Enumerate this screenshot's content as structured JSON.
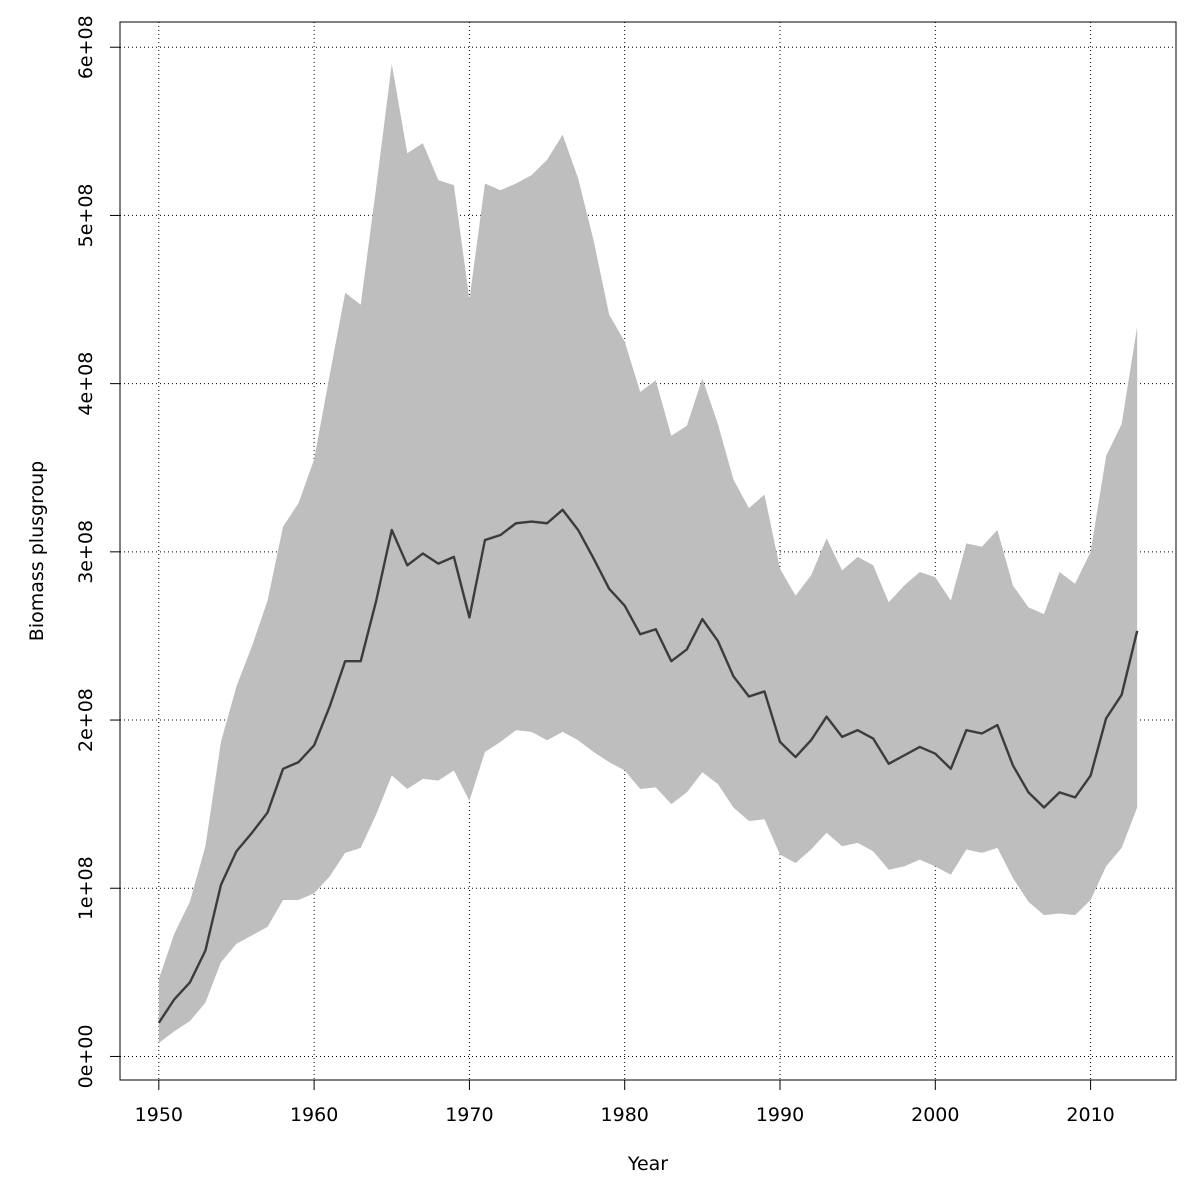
{
  "chart_data": {
    "type": "area",
    "title": "",
    "xlabel": "Year",
    "ylabel": "Biomass plusgroup",
    "xlim": [
      1947.5,
      2015.5
    ],
    "ylim": [
      -14000000,
      615000000
    ],
    "x_ticks": [
      1950,
      1960,
      1970,
      1980,
      1990,
      2000,
      2010
    ],
    "x_tick_labels": [
      "1950",
      "1960",
      "1970",
      "1980",
      "1990",
      "2000",
      "2010"
    ],
    "y_ticks": [
      0,
      100000000,
      200000000,
      300000000,
      400000000,
      500000000,
      600000000
    ],
    "y_tick_labels": [
      "0e+00",
      "1e+08",
      "2e+08",
      "3e+08",
      "4e+08",
      "5e+08",
      "6e+08"
    ],
    "grid": true,
    "legend": "none",
    "colors": {
      "band": "#bebebe",
      "line": "#3c3c3c",
      "grid": "#000000",
      "frame": "#000000"
    },
    "x": [
      1950,
      1951,
      1952,
      1953,
      1954,
      1955,
      1956,
      1957,
      1958,
      1959,
      1960,
      1961,
      1962,
      1963,
      1964,
      1965,
      1966,
      1967,
      1968,
      1969,
      1970,
      1971,
      1972,
      1973,
      1974,
      1975,
      1976,
      1977,
      1978,
      1979,
      1980,
      1981,
      1982,
      1983,
      1984,
      1985,
      1986,
      1987,
      1988,
      1989,
      1990,
      1991,
      1992,
      1993,
      1994,
      1995,
      1996,
      1997,
      1998,
      1999,
      2000,
      2001,
      2002,
      2003,
      2004,
      2005,
      2006,
      2007,
      2008,
      2009,
      2010,
      2011,
      2012,
      2013
    ],
    "series": [
      {
        "role": "upper",
        "values": [
          46,
          73,
          92,
          125,
          187,
          220,
          244,
          271,
          315,
          329,
          355,
          405,
          454,
          447,
          517,
          590,
          537,
          543,
          521,
          518,
          450,
          519,
          515,
          519,
          524,
          533,
          548,
          522,
          485,
          441,
          425,
          395,
          402,
          369,
          375,
          403,
          376,
          343,
          326,
          334,
          290,
          274,
          286,
          308,
          289,
          297,
          292,
          270,
          280,
          288,
          285,
          271,
          305,
          303,
          313,
          280,
          267,
          263,
          288,
          281,
          300,
          357,
          376,
          434
        ],
        "unit_multiplier": 1000000
      },
      {
        "role": "median",
        "values": [
          20,
          34,
          44,
          63,
          102,
          122,
          133,
          145,
          171,
          175,
          185,
          208,
          235,
          235,
          271,
          313,
          292,
          299,
          293,
          297,
          261,
          307,
          310,
          317,
          318,
          317,
          325,
          313,
          296,
          278,
          268,
          251,
          254,
          235,
          242,
          260,
          247,
          226,
          214,
          217,
          187,
          178,
          188,
          202,
          190,
          194,
          189,
          174,
          179,
          184,
          180,
          171,
          194,
          192,
          197,
          173,
          157,
          148,
          157,
          154,
          167,
          201,
          215,
          253
        ],
        "unit_multiplier": 1000000
      },
      {
        "role": "lower",
        "values": [
          8,
          15,
          21,
          32,
          56,
          67,
          72,
          77,
          93,
          93,
          97,
          107,
          121,
          124,
          144,
          167,
          159,
          165,
          164,
          170,
          152,
          181,
          187,
          194,
          193,
          188,
          193,
          188,
          181,
          175,
          170,
          159,
          160,
          150,
          157,
          169,
          162,
          148,
          140,
          141,
          120,
          115,
          123,
          133,
          125,
          127,
          122,
          111,
          113,
          117,
          113,
          108,
          123,
          121,
          124,
          106,
          92,
          84,
          85,
          84,
          93,
          113,
          124,
          148
        ],
        "unit_multiplier": 1000000
      }
    ]
  }
}
